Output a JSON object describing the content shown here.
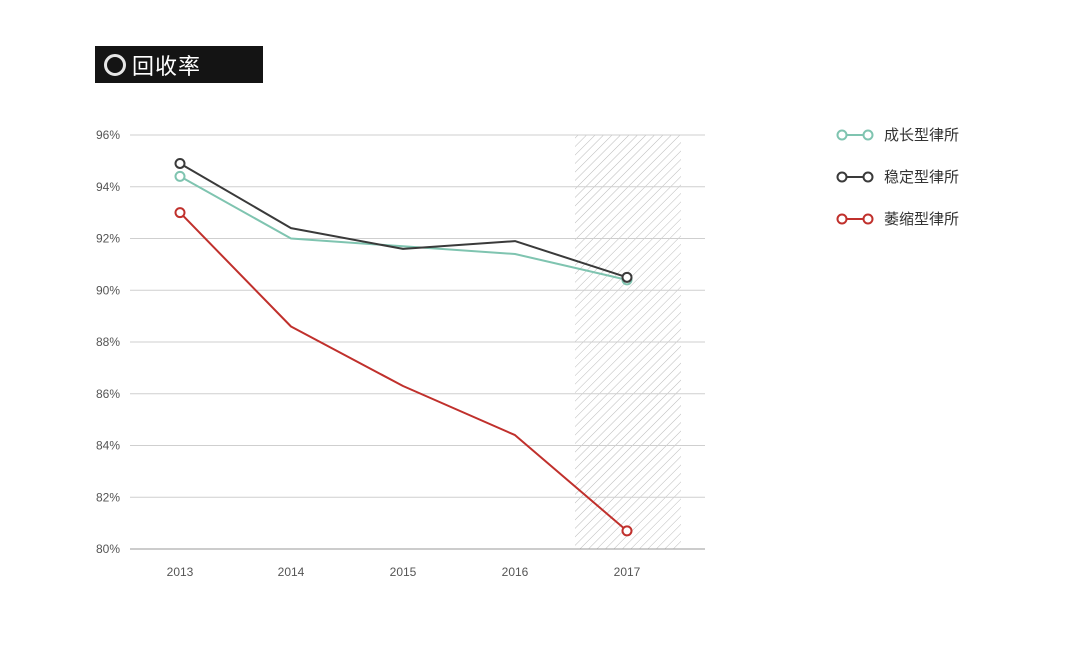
{
  "title": "回收率",
  "chart_data": {
    "type": "line",
    "x": [
      "2013",
      "2014",
      "2015",
      "2016",
      "2017"
    ],
    "ylim": [
      80,
      96
    ],
    "yticks": [
      "80%",
      "82%",
      "84%",
      "86%",
      "88%",
      "90%",
      "92%",
      "94%",
      "96%"
    ],
    "highlight_category": "2017",
    "grid": true,
    "legend_position": "right",
    "series": [
      {
        "name": "成长型律所",
        "color": "#7fc4b0",
        "values": [
          94.4,
          92.0,
          91.7,
          91.4,
          90.4
        ]
      },
      {
        "name": "稳定型律所",
        "color": "#3a3a3a",
        "values": [
          94.9,
          92.4,
          91.6,
          91.9,
          90.5
        ]
      },
      {
        "name": "萎缩型律所",
        "color": "#c0302c",
        "values": [
          93.0,
          88.6,
          86.3,
          84.4,
          80.7
        ]
      }
    ]
  }
}
